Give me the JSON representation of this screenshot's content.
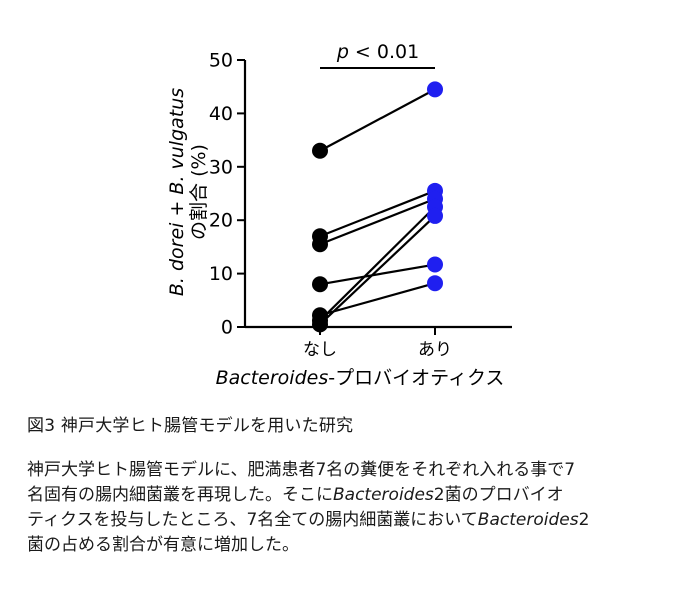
{
  "chart_data": {
    "type": "scatter",
    "paired": true,
    "categories": [
      "なし",
      "あり"
    ],
    "xlabel_italic": "Bacteroides",
    "xlabel_suffix": "-プロバイオティクス",
    "ylabel_line1": "B. dorei + B. vulgatus",
    "ylabel_line2": "の割合 (%)",
    "ylim": [
      0,
      50
    ],
    "yticks": [
      "0",
      "10",
      "20",
      "30",
      "40",
      "50"
    ],
    "annotation": "p < 0.01",
    "annotation_italic": "p",
    "annotation_rest": " < 0.01",
    "pairs": [
      {
        "before": 33.0,
        "after": 44.5
      },
      {
        "before": 17.0,
        "after": 25.5
      },
      {
        "before": 15.5,
        "after": 24.0
      },
      {
        "before": 8.0,
        "after": 11.7
      },
      {
        "before": 2.2,
        "after": 8.2
      },
      {
        "before": 1.2,
        "after": 22.5
      },
      {
        "before": 0.5,
        "after": 20.8
      }
    ],
    "colors": {
      "before": "#000000",
      "after": "#1f1ff0",
      "line": "#000000"
    },
    "grid": false
  },
  "caption": {
    "title": "図3 神戸大学ヒト腸管モデルを用いた研究",
    "line1": "神戸大学ヒト腸管モデルに、肥満患者7名の糞便をそれぞれ入れる事で7",
    "line2_a": "名固有の腸内細菌叢を再現した。そこに",
    "line2_em": "Bacteroides",
    "line2_b": "2菌のプロバイオ",
    "line3_a": "ティクスを投与したところ、7名全ての腸内細菌叢において",
    "line3_em": "Bacteroides",
    "line3_b": "2",
    "line4": "菌の占める割合が有意に増加した。"
  }
}
